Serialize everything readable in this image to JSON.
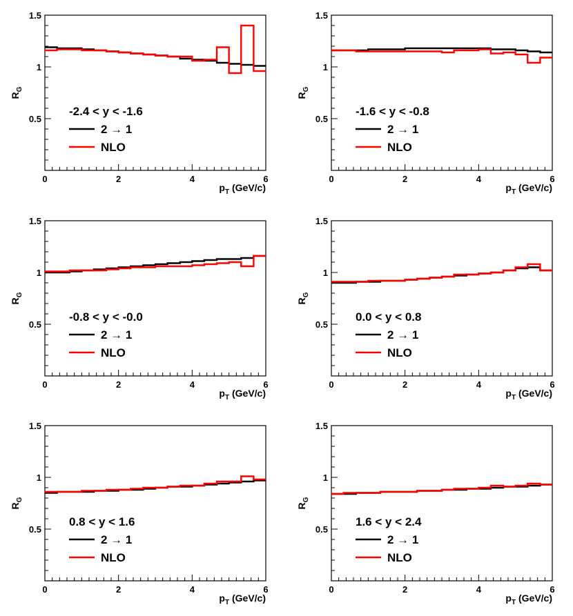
{
  "chart_data": [
    {
      "type": "line",
      "title": "-2.4 < y < -1.6",
      "xlabel": "p_T (GeV/c)",
      "ylabel": "R_G",
      "xlim": [
        0,
        6
      ],
      "ylim": [
        0,
        1.5
      ],
      "xticks": [
        "0",
        "2",
        "4",
        "6"
      ],
      "yticks": [
        "0.5",
        "1",
        "1.5"
      ],
      "x_bin_edges": [
        0,
        0.33,
        0.67,
        1.0,
        1.33,
        1.67,
        2.0,
        2.33,
        2.67,
        3.0,
        3.33,
        3.67,
        4.0,
        4.33,
        4.67,
        5.0,
        5.33,
        5.67,
        6.0
      ],
      "series": [
        {
          "name": "2 → 1",
          "color": "#000000",
          "values": [
            1.19,
            1.18,
            1.18,
            1.17,
            1.16,
            1.15,
            1.14,
            1.13,
            1.12,
            1.11,
            1.1,
            1.08,
            1.07,
            1.06,
            1.04,
            1.03,
            1.02,
            1.01
          ]
        },
        {
          "name": "NLO",
          "color": "#ff0000",
          "values": [
            1.16,
            1.17,
            1.17,
            1.16,
            1.16,
            1.15,
            1.14,
            1.13,
            1.12,
            1.11,
            1.1,
            1.1,
            1.06,
            1.07,
            1.19,
            0.94,
            1.4,
            0.96
          ]
        }
      ]
    },
    {
      "type": "line",
      "title": "-1.6 < y < -0.8",
      "xlabel": "p_T (GeV/c)",
      "ylabel": "R_G",
      "xlim": [
        0,
        6
      ],
      "ylim": [
        0,
        1.5
      ],
      "xticks": [
        "0",
        "2",
        "4",
        "6"
      ],
      "yticks": [
        "0.5",
        "1",
        "1.5"
      ],
      "x_bin_edges": [
        0,
        0.33,
        0.67,
        1.0,
        1.33,
        1.67,
        2.0,
        2.33,
        2.67,
        3.0,
        3.33,
        3.67,
        4.0,
        4.33,
        4.67,
        5.0,
        5.33,
        5.67,
        6.0
      ],
      "series": [
        {
          "name": "2 → 1",
          "color": "#000000",
          "values": [
            1.16,
            1.16,
            1.16,
            1.17,
            1.17,
            1.17,
            1.18,
            1.18,
            1.18,
            1.18,
            1.18,
            1.18,
            1.18,
            1.17,
            1.17,
            1.16,
            1.15,
            1.14
          ]
        },
        {
          "name": "NLO",
          "color": "#ff0000",
          "values": [
            1.16,
            1.16,
            1.15,
            1.15,
            1.15,
            1.15,
            1.15,
            1.15,
            1.15,
            1.14,
            1.16,
            1.16,
            1.17,
            1.13,
            1.14,
            1.12,
            1.04,
            1.09
          ]
        }
      ]
    },
    {
      "type": "line",
      "title": "-0.8 < y < -0.0",
      "xlabel": "p_T (GeV/c)",
      "ylabel": "R_G",
      "xlim": [
        0,
        6
      ],
      "ylim": [
        0,
        1.5
      ],
      "xticks": [
        "0",
        "2",
        "4",
        "6"
      ],
      "yticks": [
        "0.5",
        "1",
        "1.5"
      ],
      "x_bin_edges": [
        0,
        0.33,
        0.67,
        1.0,
        1.33,
        1.67,
        2.0,
        2.33,
        2.67,
        3.0,
        3.33,
        3.67,
        4.0,
        4.33,
        4.67,
        5.0,
        5.33,
        5.67,
        6.0
      ],
      "series": [
        {
          "name": "2 → 1",
          "color": "#000000",
          "values": [
            1.0,
            1.0,
            1.01,
            1.02,
            1.03,
            1.04,
            1.05,
            1.06,
            1.07,
            1.08,
            1.09,
            1.1,
            1.11,
            1.12,
            1.13,
            1.13,
            1.14,
            1.16
          ]
        },
        {
          "name": "NLO",
          "color": "#ff0000",
          "values": [
            1.01,
            1.01,
            1.02,
            1.02,
            1.02,
            1.03,
            1.04,
            1.05,
            1.05,
            1.06,
            1.06,
            1.06,
            1.07,
            1.08,
            1.09,
            1.1,
            1.06,
            1.16
          ]
        }
      ]
    },
    {
      "type": "line",
      "title": "0.0 < y < 0.8",
      "xlabel": "p_T (GeV/c)",
      "ylabel": "R_G",
      "xlim": [
        0,
        6
      ],
      "ylim": [
        0,
        1.5
      ],
      "xticks": [
        "0",
        "2",
        "4",
        "6"
      ],
      "yticks": [
        "0.5",
        "1",
        "1.5"
      ],
      "x_bin_edges": [
        0,
        0.33,
        0.67,
        1.0,
        1.33,
        1.67,
        2.0,
        2.33,
        2.67,
        3.0,
        3.33,
        3.67,
        4.0,
        4.33,
        4.67,
        5.0,
        5.33,
        5.67,
        6.0
      ],
      "series": [
        {
          "name": "2 → 1",
          "color": "#000000",
          "values": [
            0.9,
            0.9,
            0.91,
            0.91,
            0.92,
            0.92,
            0.93,
            0.94,
            0.95,
            0.96,
            0.97,
            0.98,
            0.99,
            1.0,
            1.02,
            1.04,
            1.05,
            1.02
          ]
        },
        {
          "name": "NLO",
          "color": "#ff0000",
          "values": [
            0.91,
            0.91,
            0.91,
            0.92,
            0.92,
            0.92,
            0.93,
            0.94,
            0.95,
            0.96,
            0.98,
            0.98,
            0.99,
            1.0,
            1.02,
            1.05,
            1.08,
            1.02
          ]
        }
      ]
    },
    {
      "type": "line",
      "title": "0.8 < y < 1.6",
      "xlabel": "p_T (GeV/c)",
      "ylabel": "R_G",
      "xlim": [
        0,
        6
      ],
      "ylim": [
        0,
        1.5
      ],
      "xticks": [
        "0",
        "2",
        "4",
        "6"
      ],
      "yticks": [
        "0.5",
        "1",
        "1.5"
      ],
      "x_bin_edges": [
        0,
        0.33,
        0.67,
        1.0,
        1.33,
        1.67,
        2.0,
        2.33,
        2.67,
        3.0,
        3.33,
        3.67,
        4.0,
        4.33,
        4.67,
        5.0,
        5.33,
        5.67,
        6.0
      ],
      "series": [
        {
          "name": "2 → 1",
          "color": "#000000",
          "values": [
            0.85,
            0.86,
            0.86,
            0.86,
            0.87,
            0.87,
            0.88,
            0.88,
            0.89,
            0.9,
            0.91,
            0.91,
            0.92,
            0.93,
            0.94,
            0.95,
            0.96,
            0.97
          ]
        },
        {
          "name": "NLO",
          "color": "#ff0000",
          "values": [
            0.86,
            0.86,
            0.86,
            0.87,
            0.87,
            0.88,
            0.88,
            0.89,
            0.9,
            0.9,
            0.91,
            0.92,
            0.92,
            0.94,
            0.96,
            0.96,
            1.01,
            0.98
          ]
        }
      ]
    },
    {
      "type": "line",
      "title": "1.6 < y < 2.4",
      "xlabel": "p_T (GeV/c)",
      "ylabel": "R_G",
      "xlim": [
        0,
        6
      ],
      "ylim": [
        0,
        1.5
      ],
      "xticks": [
        "0",
        "2",
        "4",
        "6"
      ],
      "yticks": [
        "0.5",
        "1",
        "1.5"
      ],
      "x_bin_edges": [
        0,
        0.33,
        0.67,
        1.0,
        1.33,
        1.67,
        2.0,
        2.33,
        2.67,
        3.0,
        3.33,
        3.67,
        4.0,
        4.33,
        4.67,
        5.0,
        5.33,
        5.67,
        6.0
      ],
      "series": [
        {
          "name": "2 → 1",
          "color": "#000000",
          "values": [
            0.84,
            0.84,
            0.85,
            0.85,
            0.86,
            0.86,
            0.86,
            0.87,
            0.87,
            0.88,
            0.88,
            0.89,
            0.89,
            0.9,
            0.91,
            0.91,
            0.92,
            0.93
          ]
        },
        {
          "name": "NLO",
          "color": "#ff0000",
          "values": [
            0.84,
            0.85,
            0.85,
            0.85,
            0.86,
            0.86,
            0.86,
            0.87,
            0.87,
            0.88,
            0.89,
            0.89,
            0.9,
            0.92,
            0.91,
            0.92,
            0.94,
            0.93
          ]
        }
      ]
    }
  ]
}
